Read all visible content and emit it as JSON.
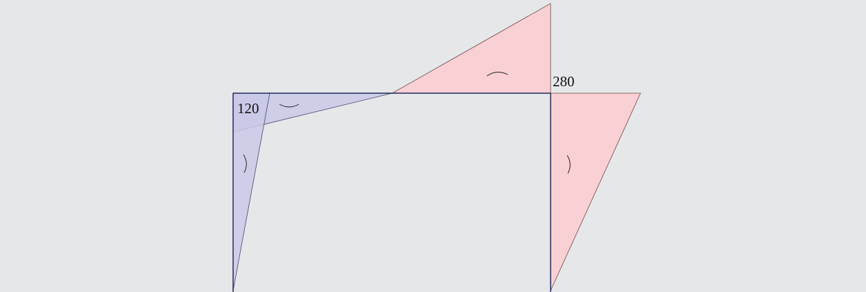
{
  "labels": {
    "left": "120",
    "right": "280"
  }
}
